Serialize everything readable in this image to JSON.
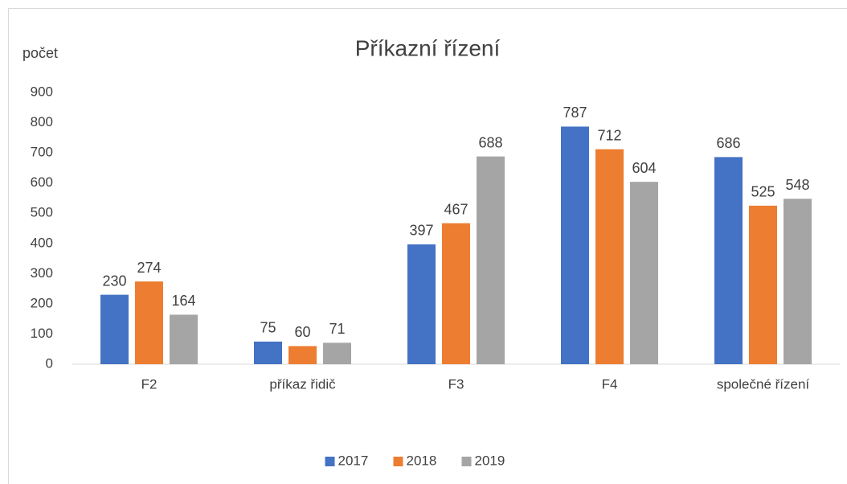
{
  "chart_data": {
    "type": "bar",
    "title": "Příkazní řízení",
    "y_label": "počet",
    "categories": [
      "F2",
      "příkaz řidič",
      "F3",
      "F4",
      "společné řízení"
    ],
    "series": [
      {
        "name": "2017",
        "color": "#4472c4",
        "values": [
          230,
          75,
          397,
          787,
          686
        ]
      },
      {
        "name": "2018",
        "color": "#ed7d31",
        "values": [
          274,
          60,
          467,
          712,
          525
        ]
      },
      {
        "name": "2019",
        "color": "#a5a5a5",
        "values": [
          164,
          71,
          688,
          604,
          548
        ]
      }
    ],
    "ylim": [
      0,
      900
    ],
    "yticks": [
      0,
      100,
      200,
      300,
      400,
      500,
      600,
      700,
      800,
      900
    ],
    "grid": false,
    "legend": "bottom"
  }
}
